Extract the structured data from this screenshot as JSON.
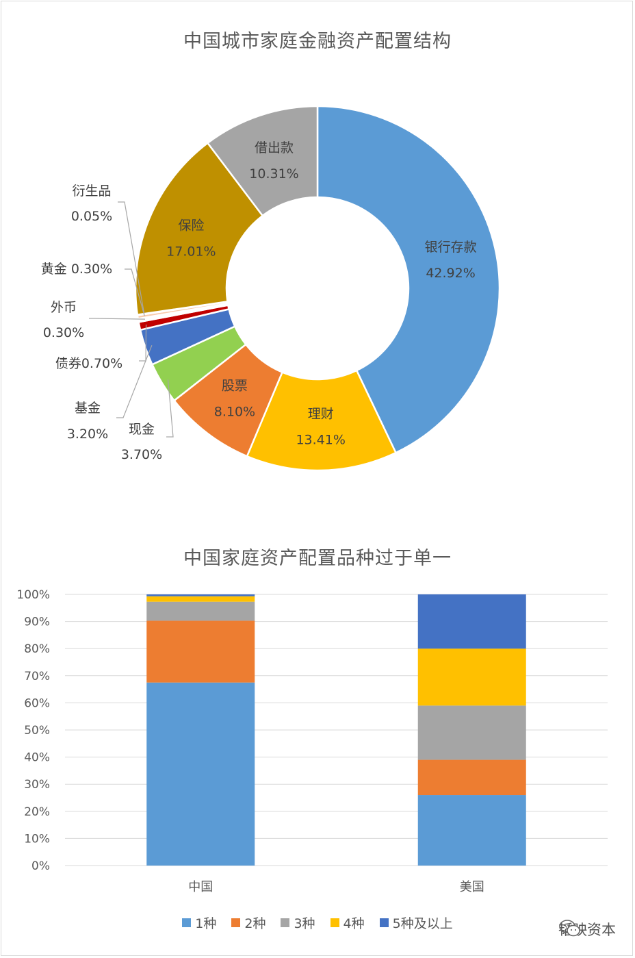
{
  "watermark": {
    "text": "韬映资本",
    "icon": "wechat-icon"
  },
  "chart_data": [
    {
      "type": "pie",
      "title": "中国城市家庭金融资产配置结构",
      "donut": true,
      "slices": [
        {
          "name": "银行存款",
          "value": 42.92,
          "label": "42.92%",
          "color": "#5b9bd5"
        },
        {
          "name": "理财",
          "value": 13.41,
          "label": "13.41%",
          "color": "#ffc000"
        },
        {
          "name": "股票",
          "value": 8.1,
          "label": "8.10%",
          "color": "#ed7d31"
        },
        {
          "name": "现金",
          "value": 3.7,
          "label": "3.70%",
          "color": "#92d050"
        },
        {
          "name": "基金",
          "value": 3.2,
          "label": "3.20%",
          "color": "#4472c4"
        },
        {
          "name": "债券",
          "value": 0.7,
          "label": "0.70%",
          "color": "#c00000"
        },
        {
          "name": "外币",
          "value": 0.3,
          "label": "0.30%",
          "color": "#ffffff"
        },
        {
          "name": "黄金",
          "value": 0.3,
          "label": "0.30%",
          "color": "#f8cbad"
        },
        {
          "name": "衍生品",
          "value": 0.05,
          "label": "0.05%",
          "color": "#e7e6e6"
        },
        {
          "name": "保险",
          "value": 17.01,
          "label": "17.01%",
          "color": "#bf9000"
        },
        {
          "name": "借出款",
          "value": 10.31,
          "label": "10.31%",
          "color": "#a5a5a5"
        }
      ]
    },
    {
      "type": "bar",
      "stacked": true,
      "title": "中国家庭资产配置品种过于单一",
      "categories": [
        "中国",
        "美国"
      ],
      "yticks": [
        "0%",
        "10%",
        "20%",
        "30%",
        "40%",
        "50%",
        "60%",
        "70%",
        "80%",
        "90%",
        "100%"
      ],
      "ylim": [
        0,
        100
      ],
      "legend_position": "bottom",
      "grid": true,
      "series": [
        {
          "name": "1种",
          "color": "#5b9bd5",
          "values": [
            67.5,
            26
          ]
        },
        {
          "name": "2种",
          "color": "#ed7d31",
          "values": [
            22.8,
            13
          ]
        },
        {
          "name": "3种",
          "color": "#a5a5a5",
          "values": [
            7,
            20
          ]
        },
        {
          "name": "4种",
          "color": "#ffc000",
          "values": [
            2,
            21
          ]
        },
        {
          "name": "5种及以上",
          "color": "#4472c4",
          "values": [
            0.7,
            20
          ]
        }
      ]
    }
  ]
}
